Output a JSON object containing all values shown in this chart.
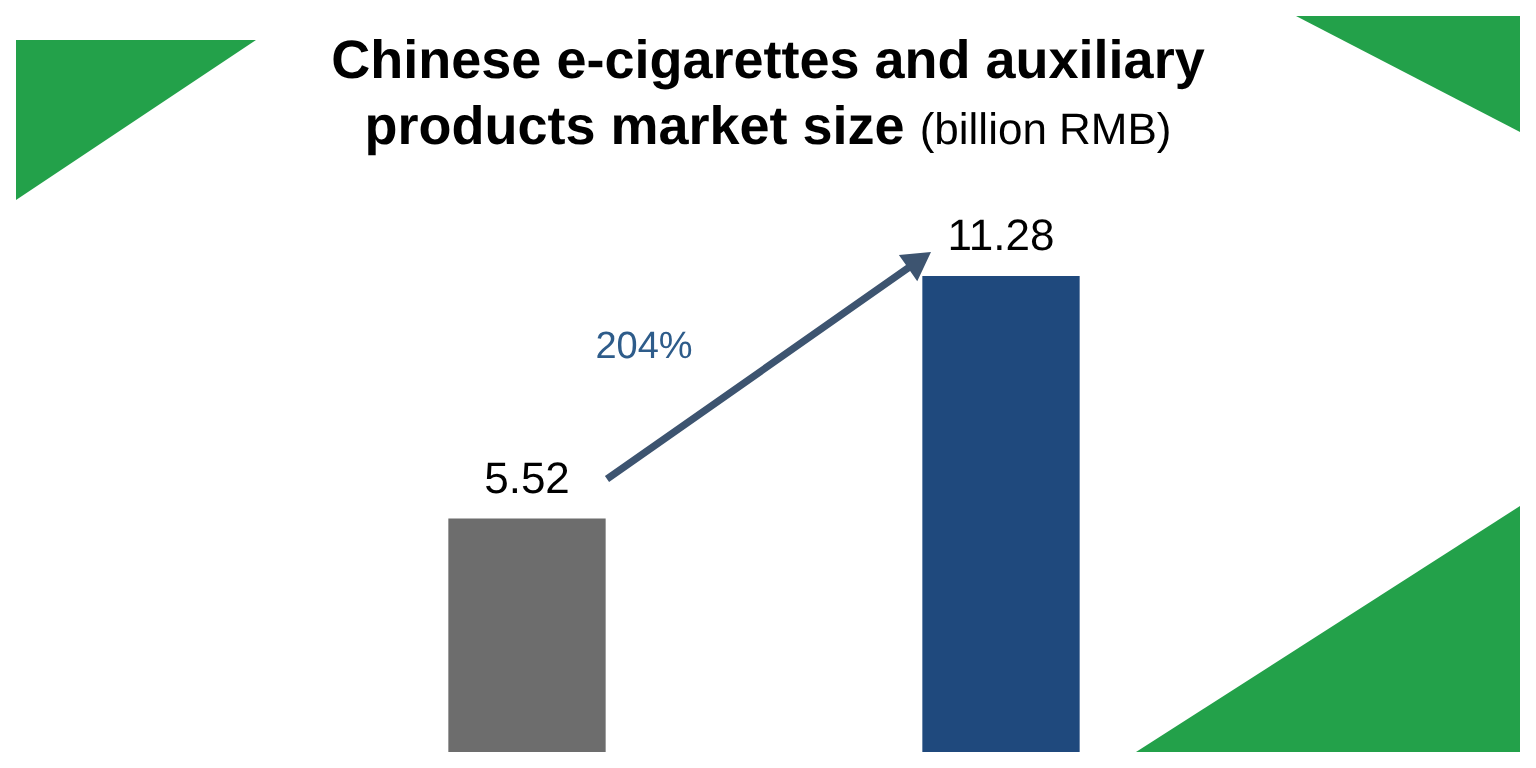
{
  "chart_data": {
    "type": "bar",
    "title": "Chinese e-cigarettes and auxiliary products market size",
    "subtitle": "(billion RMB)",
    "categories": [
      null,
      null
    ],
    "values": [
      5.52,
      11.28
    ],
    "colors": [
      "#6d6d6d",
      "#1f497d"
    ],
    "data_labels": true,
    "annotations": [
      "204%"
    ]
  }
}
